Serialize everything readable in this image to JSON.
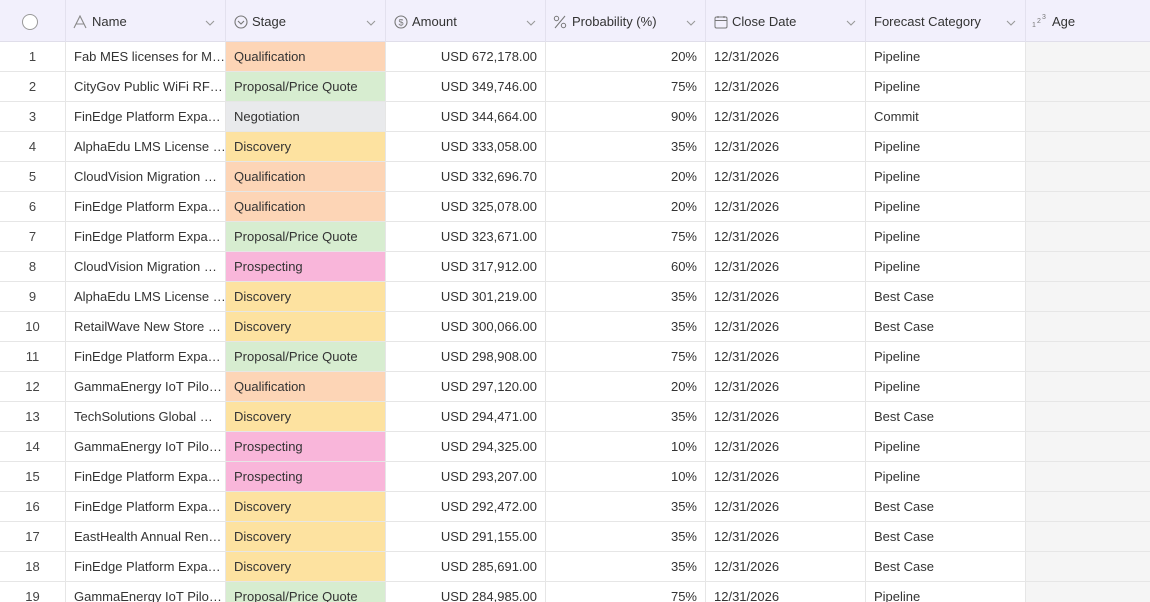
{
  "table": {
    "columns": [
      "Name",
      "Stage",
      "Amount",
      "Probability (%)",
      "Close Date",
      "Forecast Category",
      "Age"
    ],
    "stage_colors": {
      "Qualification": "#fdd5b6",
      "Proposal/Price Quote": "#d7edd0",
      "Negotiation": "#e9eaec",
      "Discovery": "#fde2a0",
      "Prospecting": "#f9b6da"
    },
    "rows": [
      [
        "1",
        "Fab MES licenses for M…",
        "Qualification",
        "USD 672,178.00",
        "20%",
        "12/31/2026",
        "Pipeline"
      ],
      [
        "2",
        "CityGov Public WiFi RF…",
        "Proposal/Price Quote",
        "USD 349,746.00",
        "75%",
        "12/31/2026",
        "Pipeline"
      ],
      [
        "3",
        "FinEdge Platform Expa…",
        "Negotiation",
        "USD 344,664.00",
        "90%",
        "12/31/2026",
        "Commit"
      ],
      [
        "4",
        "AlphaEdu LMS License …",
        "Discovery",
        "USD 333,058.00",
        "35%",
        "12/31/2026",
        "Pipeline"
      ],
      [
        "5",
        "CloudVision Migration …",
        "Qualification",
        "USD 332,696.70",
        "20%",
        "12/31/2026",
        "Pipeline"
      ],
      [
        "6",
        "FinEdge Platform Expa…",
        "Qualification",
        "USD 325,078.00",
        "20%",
        "12/31/2026",
        "Pipeline"
      ],
      [
        "7",
        "FinEdge Platform Expa…",
        "Proposal/Price Quote",
        "USD 323,671.00",
        "75%",
        "12/31/2026",
        "Pipeline"
      ],
      [
        "8",
        "CloudVision Migration …",
        "Prospecting",
        "USD 317,912.00",
        "60%",
        "12/31/2026",
        "Pipeline"
      ],
      [
        "9",
        "AlphaEdu LMS License …",
        "Discovery",
        "USD 301,219.00",
        "35%",
        "12/31/2026",
        "Best Case"
      ],
      [
        "10",
        "RetailWave New Store …",
        "Discovery",
        "USD 300,066.00",
        "35%",
        "12/31/2026",
        "Best Case"
      ],
      [
        "11",
        "FinEdge Platform Expa…",
        "Proposal/Price Quote",
        "USD 298,908.00",
        "75%",
        "12/31/2026",
        "Pipeline"
      ],
      [
        "12",
        "GammaEnergy IoT Pilo…",
        "Qualification",
        "USD 297,120.00",
        "20%",
        "12/31/2026",
        "Pipeline"
      ],
      [
        "13",
        "TechSolutions Global …",
        "Discovery",
        "USD 294,471.00",
        "35%",
        "12/31/2026",
        "Best Case"
      ],
      [
        "14",
        "GammaEnergy IoT Pilo…",
        "Prospecting",
        "USD 294,325.00",
        "10%",
        "12/31/2026",
        "Pipeline"
      ],
      [
        "15",
        "FinEdge Platform Expa…",
        "Prospecting",
        "USD 293,207.00",
        "10%",
        "12/31/2026",
        "Pipeline"
      ],
      [
        "16",
        "FinEdge Platform Expa…",
        "Discovery",
        "USD 292,472.00",
        "35%",
        "12/31/2026",
        "Best Case"
      ],
      [
        "17",
        "EastHealth Annual Ren…",
        "Discovery",
        "USD 291,155.00",
        "35%",
        "12/31/2026",
        "Best Case"
      ],
      [
        "18",
        "FinEdge Platform Expa…",
        "Discovery",
        "USD 285,691.00",
        "35%",
        "12/31/2026",
        "Best Case"
      ],
      [
        "19",
        "GammaEnergy IoT Pilo…",
        "Proposal/Price Quote",
        "USD 284,985.00",
        "75%",
        "12/31/2026",
        "Pipeline"
      ]
    ]
  }
}
